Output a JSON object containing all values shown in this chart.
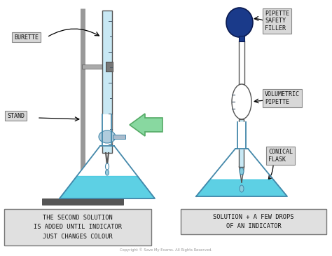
{
  "bg_color": "#ffffff",
  "cyan_blue": "#40C8E0",
  "dark_navy": "#1a3a8a",
  "stand_gray": "#999999",
  "stand_dark": "#666666",
  "clamp_gray": "#777777",
  "burette_fill": "#c8e8f4",
  "burette_outline": "#555555",
  "flask_outline": "#555555",
  "flask_outline2": "#4488aa",
  "arrow_color": "#88D8A0",
  "arrow_outline": "#55aa66",
  "label_box_color": "#d8d8d8",
  "label_box_outline": "#888888",
  "text_color": "#111111",
  "label_burette": "BURETTE",
  "label_stand": "STAND",
  "label_pipette_safety": "PIPETTE\nSAFETY\nFILLER",
  "label_volumetric": "VOLUMETRIC\nPIPETTE",
  "label_conical": "CONICAL\nFLASK",
  "label_left": "THE SECOND SOLUTION\nIS ADDED UNTIL INDICATOR\nJUST CHANGES COLOUR",
  "label_right": "SOLUTION + A FEW DROPS\nOF AN INDICATOR",
  "copyright": "Copyright © Save My Exams. All Rights Reserved."
}
